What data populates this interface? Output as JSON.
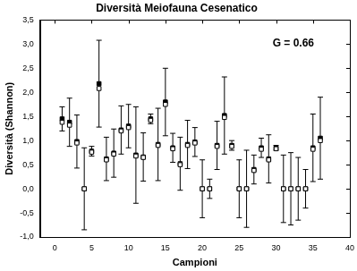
{
  "chart_data": {
    "type": "scatter",
    "title": "Diversità Meiofauna Cesenatico",
    "x_label": "Campioni",
    "y_label": "Diversità (Shannon)",
    "annotation": "G = 0.66",
    "grid": false,
    "xlim": [
      -2,
      40
    ],
    "xticks": [
      0,
      5,
      10,
      15,
      20,
      25,
      30,
      35,
      40
    ],
    "ylim": [
      -1.0,
      3.5
    ],
    "yticks": [
      {
        "value": -1.0,
        "label": "-1,0"
      },
      {
        "value": -0.5,
        "label": "-0,5"
      },
      {
        "value": 0.0,
        "label": "0,0"
      },
      {
        "value": 0.5,
        "label": "0,5"
      },
      {
        "value": 1.0,
        "label": "1,0"
      },
      {
        "value": 1.5,
        "label": "1,5"
      },
      {
        "value": 2.0,
        "label": "2,0"
      },
      {
        "value": 2.5,
        "label": "2,5"
      },
      {
        "value": 3.0,
        "label": "3,0"
      },
      {
        "value": 3.5,
        "label": "3,5"
      }
    ],
    "x": [
      1,
      2,
      3,
      4,
      5,
      6,
      7,
      8,
      9,
      10,
      11,
      12,
      13,
      14,
      15,
      16,
      17,
      18,
      19,
      20,
      21,
      22,
      23,
      24,
      25,
      26,
      27,
      28,
      29,
      30,
      31,
      32,
      33,
      34,
      35,
      36
    ],
    "series": [
      {
        "color": "#000000",
        "marker": "open_square",
        "values": [
          1.38,
          1.32,
          0.95,
          0,
          0.76,
          2.08,
          0.6,
          0.72,
          1.2,
          1.27,
          0.68,
          0.65,
          1.42,
          0.9,
          1.75,
          0.83,
          0.5,
          0.9,
          0.95,
          0,
          0,
          0.88,
          1.48,
          0.88,
          0,
          0,
          0.38,
          0.82,
          0.6,
          0.83,
          0,
          0,
          0,
          0,
          0.82,
          1.0
        ]
      },
      {
        "color": "#000000",
        "marker": "filled_square",
        "values": [
          1.45,
          1.38,
          0.98,
          0,
          0.78,
          2.18,
          0.62,
          0.74,
          1.22,
          1.3,
          0.7,
          0.66,
          1.45,
          0.92,
          1.8,
          0.85,
          0.52,
          0.92,
          0.97,
          0,
          0,
          0.9,
          1.52,
          0.9,
          0,
          0,
          0.4,
          0.85,
          0.62,
          0.85,
          0,
          0,
          0,
          0,
          0.85,
          1.05
        ],
        "errors": [
          0.25,
          0.5,
          0.55,
          0.85,
          0.1,
          0.9,
          0.45,
          0.5,
          0.5,
          0.45,
          1.0,
          0.5,
          0.1,
          0.75,
          0.7,
          0.3,
          0.55,
          0.5,
          0.3,
          0.6,
          0.2,
          0.5,
          0.8,
          0.1,
          0.6,
          0.8,
          0.3,
          0.2,
          0.5,
          0.05,
          0.7,
          0.75,
          0.65,
          0.4,
          0.7,
          0.85
        ]
      }
    ]
  }
}
